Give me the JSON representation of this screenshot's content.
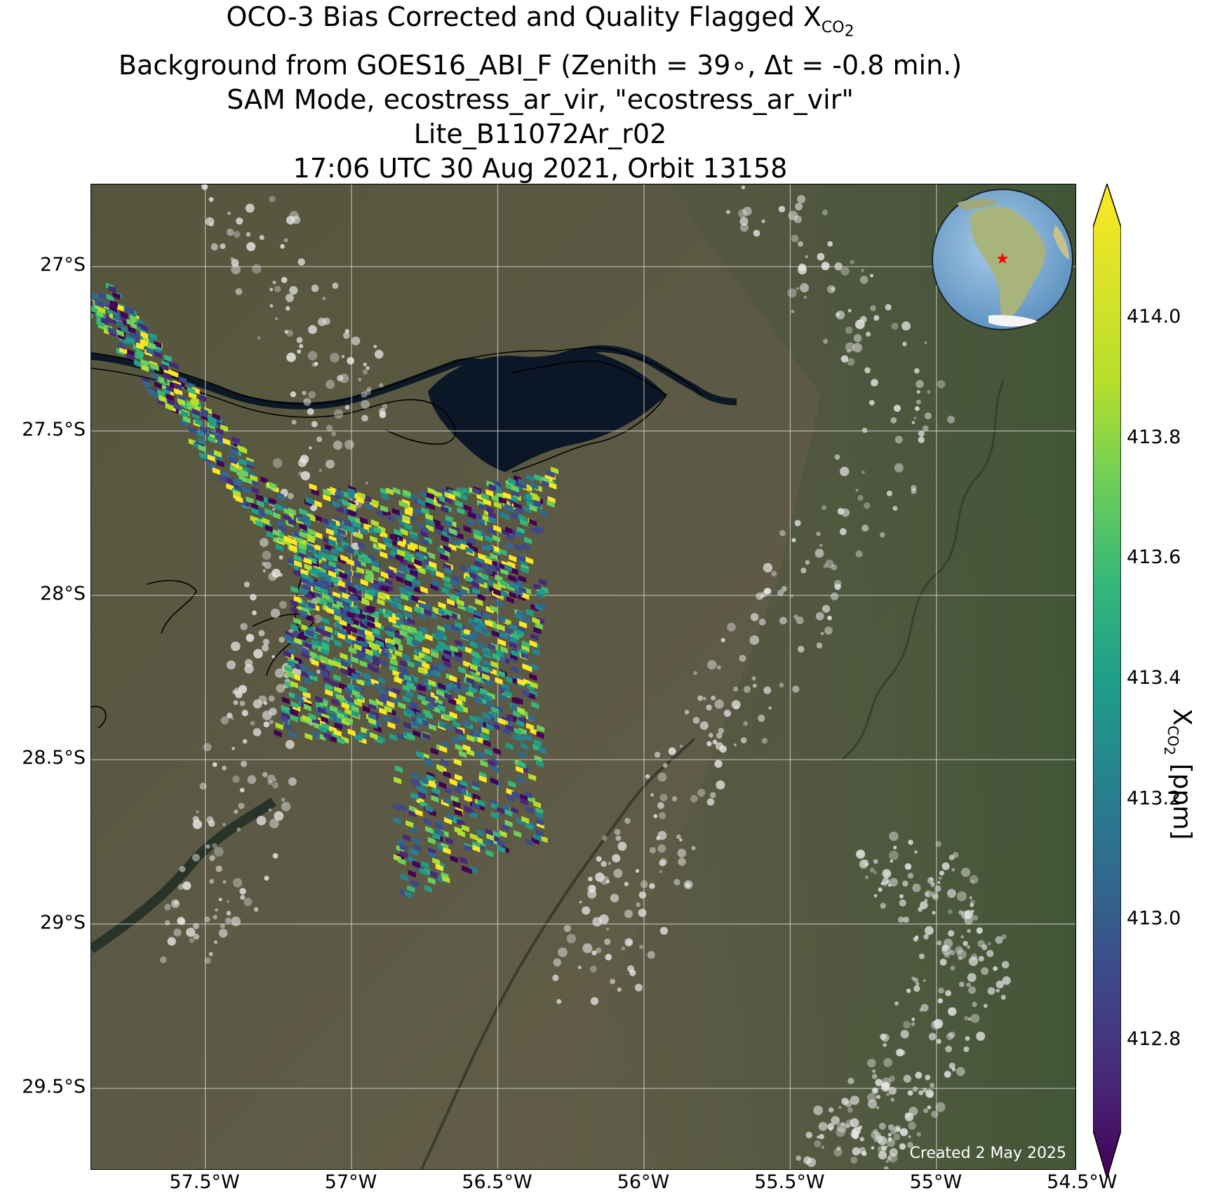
{
  "title": {
    "line1_prefix": "OCO-3 Bias Corrected and Quality Flagged X",
    "line1_sub": "CO",
    "line1_sub2": "2",
    "line2": "Background from GOES16_ABI_F (Zenith = 39∘, Δt = -0.8 min.)",
    "line3": "SAM Mode, ecostress_ar_vir, \"ecostress_ar_vir\"",
    "line4": "Lite_B11072Ar_r02",
    "line5": "17:06 UTC 30 Aug 2021, Orbit 13158"
  },
  "map": {
    "lat_ticks": [
      "27°S",
      "27.5°S",
      "28°S",
      "28.5°S",
      "29°S",
      "29.5°S"
    ],
    "lon_ticks": [
      "57.5°W",
      "57°W",
      "56.5°W",
      "56°W",
      "55.5°W",
      "55°W",
      "54.5°W"
    ],
    "lat_values": [
      -27.0,
      -27.5,
      -28.0,
      -28.5,
      -29.0,
      -29.5
    ],
    "lon_values": [
      -57.5,
      -57.0,
      -56.5,
      -56.0,
      -55.5,
      -55.0,
      -54.5
    ],
    "lat_range": [
      -29.75,
      -26.75
    ],
    "lon_range": [
      -57.89,
      -54.52
    ],
    "created_label": "Created 2 May 2025",
    "inset_marker": "red-star"
  },
  "colorbar": {
    "label_prefix": "X",
    "label_sub": "CO",
    "label_sub2": "2",
    "label_unit": " [ppm]",
    "ticks": [
      "414.0",
      "413.8",
      "413.6",
      "413.4",
      "413.2",
      "413.0",
      "412.8"
    ],
    "tick_values": [
      414.0,
      413.8,
      413.6,
      413.4,
      413.2,
      413.0,
      412.8
    ],
    "range": [
      412.65,
      414.15
    ],
    "colormap": "viridis",
    "extend": "both"
  },
  "colors": {
    "land": "#5a5a44",
    "water": "#0d1a2a",
    "grid": "#d8d8d8"
  }
}
